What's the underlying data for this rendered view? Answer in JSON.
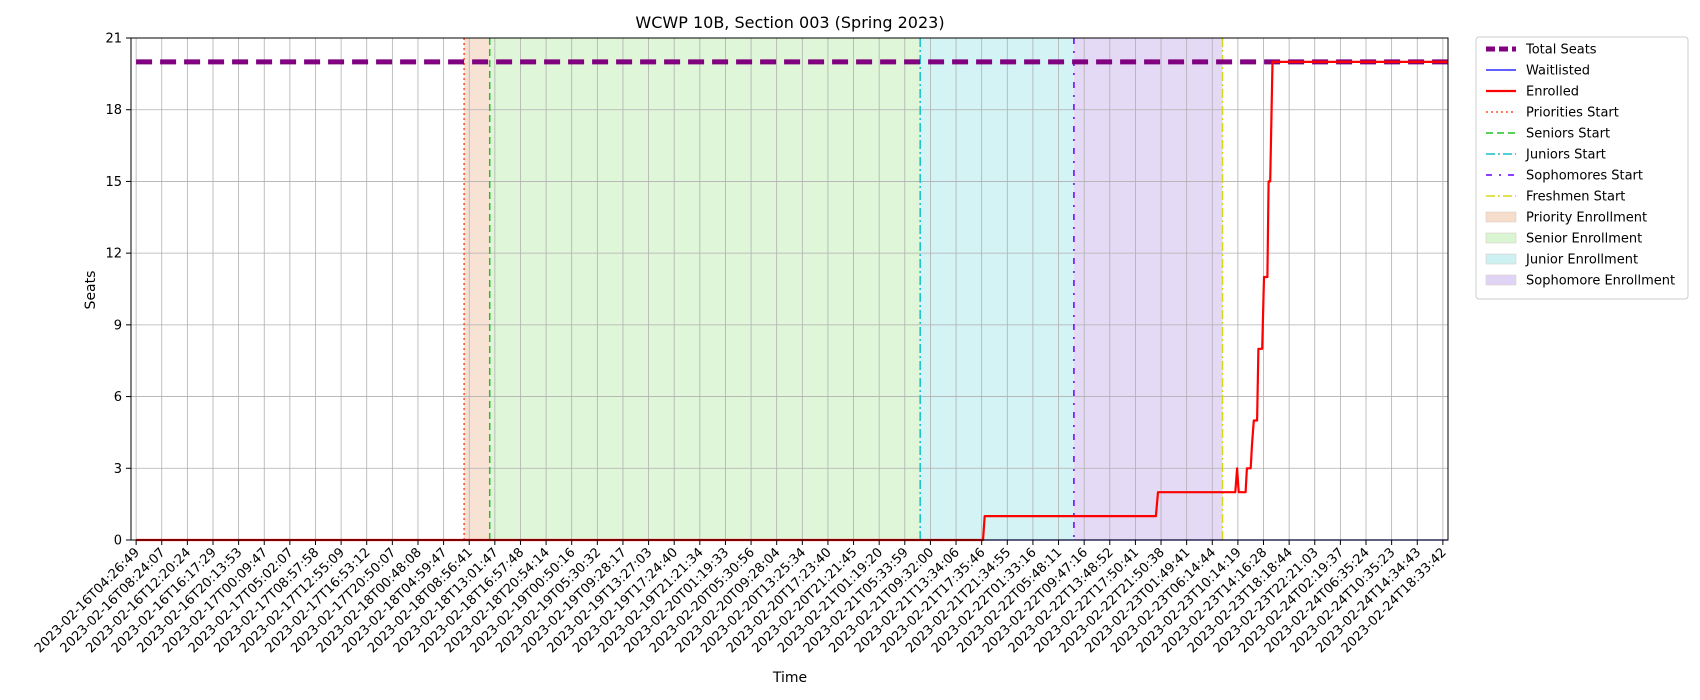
{
  "chart_data": {
    "type": "line",
    "title": "WCWP 10B, Section 003 (Spring 2023)",
    "xlabel": "Time",
    "ylabel": "Seats",
    "ylim": [
      0,
      21
    ],
    "yticks": [
      0,
      3,
      6,
      9,
      12,
      15,
      18,
      21
    ],
    "grid": true,
    "legend_placement": "outside-right-top",
    "x_tick_labels": [
      "2023-02-16T04:26:49",
      "2023-02-16T08:24:07",
      "2023-02-16T12:20:24",
      "2023-02-16T16:17:29",
      "2023-02-16T20:13:53",
      "2023-02-17T00:09:47",
      "2023-02-17T05:02:07",
      "2023-02-17T08:57:58",
      "2023-02-17T12:55:09",
      "2023-02-17T16:53:12",
      "2023-02-17T20:50:07",
      "2023-02-18T00:48:08",
      "2023-02-18T04:59:47",
      "2023-02-18T08:56:41",
      "2023-02-18T13:01:47",
      "2023-02-18T16:57:48",
      "2023-02-18T20:54:14",
      "2023-02-19T00:50:16",
      "2023-02-19T05:30:32",
      "2023-02-19T09:28:17",
      "2023-02-19T13:27:03",
      "2023-02-19T17:24:40",
      "2023-02-19T21:21:34",
      "2023-02-20T01:19:33",
      "2023-02-20T05:30:56",
      "2023-02-20T09:28:04",
      "2023-02-20T13:25:34",
      "2023-02-20T17:23:40",
      "2023-02-20T21:21:45",
      "2023-02-21T01:19:20",
      "2023-02-21T05:33:59",
      "2023-02-21T09:32:00",
      "2023-02-21T13:34:06",
      "2023-02-21T17:35:46",
      "2023-02-21T21:34:55",
      "2023-02-22T01:33:16",
      "2023-02-22T05:48:11",
      "2023-02-22T09:47:16",
      "2023-02-22T13:48:52",
      "2023-02-22T17:50:41",
      "2023-02-22T21:50:38",
      "2023-02-23T01:49:41",
      "2023-02-23T06:14:44",
      "2023-02-23T10:14:19",
      "2023-02-23T14:16:28",
      "2023-02-23T18:18:44",
      "2023-02-23T22:21:03",
      "2023-02-24T02:19:37",
      "2023-02-24T06:35:24",
      "2023-02-24T10:35:23",
      "2023-02-24T14:34:43",
      "2023-02-24T18:33:42"
    ],
    "series": [
      {
        "name": "Total Seats",
        "color": "#800080",
        "style": "dashed-thick",
        "points": [
          [
            0,
            20
          ],
          [
            51.2,
            20
          ]
        ]
      },
      {
        "name": "Waitlisted",
        "color": "#0000ff",
        "style": "solid-thin",
        "points": [
          [
            0,
            0
          ],
          [
            51.2,
            0
          ]
        ]
      },
      {
        "name": "Enrolled",
        "color": "#ff0000",
        "style": "solid",
        "points": [
          [
            0,
            0
          ],
          [
            33.05,
            0
          ],
          [
            33.12,
            1
          ],
          [
            39.8,
            1
          ],
          [
            39.88,
            2
          ],
          [
            42.9,
            2
          ],
          [
            42.97,
            3
          ],
          [
            43.03,
            2
          ],
          [
            43.3,
            2
          ],
          [
            43.35,
            3
          ],
          [
            43.5,
            3
          ],
          [
            43.55,
            4
          ],
          [
            43.62,
            5
          ],
          [
            43.75,
            5
          ],
          [
            43.8,
            8
          ],
          [
            43.95,
            8
          ],
          [
            44.02,
            11
          ],
          [
            44.15,
            11
          ],
          [
            44.2,
            15
          ],
          [
            44.26,
            15
          ],
          [
            44.35,
            20
          ],
          [
            51.2,
            20
          ]
        ]
      }
    ],
    "markers": [
      {
        "name": "Priorities Start",
        "x": 12.8,
        "color": "#ff4d29",
        "style": "dotted"
      },
      {
        "name": "Seniors Start",
        "x": 13.8,
        "color": "#22c022",
        "style": "dashed"
      },
      {
        "name": "Juniors Start",
        "x": 30.6,
        "color": "#17bfc7",
        "style": "dashdot"
      },
      {
        "name": "Sophomores Start",
        "x": 36.6,
        "color": "#6600ff",
        "style": "loose-dashdot"
      },
      {
        "name": "Freshmen Start",
        "x": 42.4,
        "color": "#d7d71a",
        "style": "dashdot-light"
      }
    ],
    "regions": [
      {
        "name": "Priority Enrollment",
        "x0": 12.8,
        "x1": 13.8,
        "color": "#f6ddcc"
      },
      {
        "name": "Senior Enrollment",
        "x0": 13.8,
        "x1": 30.6,
        "color": "#d9f5d2"
      },
      {
        "name": "Junior Enrollment",
        "x0": 30.6,
        "x1": 36.6,
        "color": "#cdf1f3"
      },
      {
        "name": "Sophomore Enrollment",
        "x0": 36.6,
        "x1": 42.4,
        "color": "#e0d4f5"
      }
    ],
    "legend": [
      "Total Seats",
      "Waitlisted",
      "Enrolled",
      "Priorities Start",
      "Seniors Start",
      "Juniors Start",
      "Sophomores Start",
      "Freshmen Start",
      "Priority Enrollment",
      "Senior Enrollment",
      "Junior Enrollment",
      "Sophomore Enrollment"
    ]
  }
}
